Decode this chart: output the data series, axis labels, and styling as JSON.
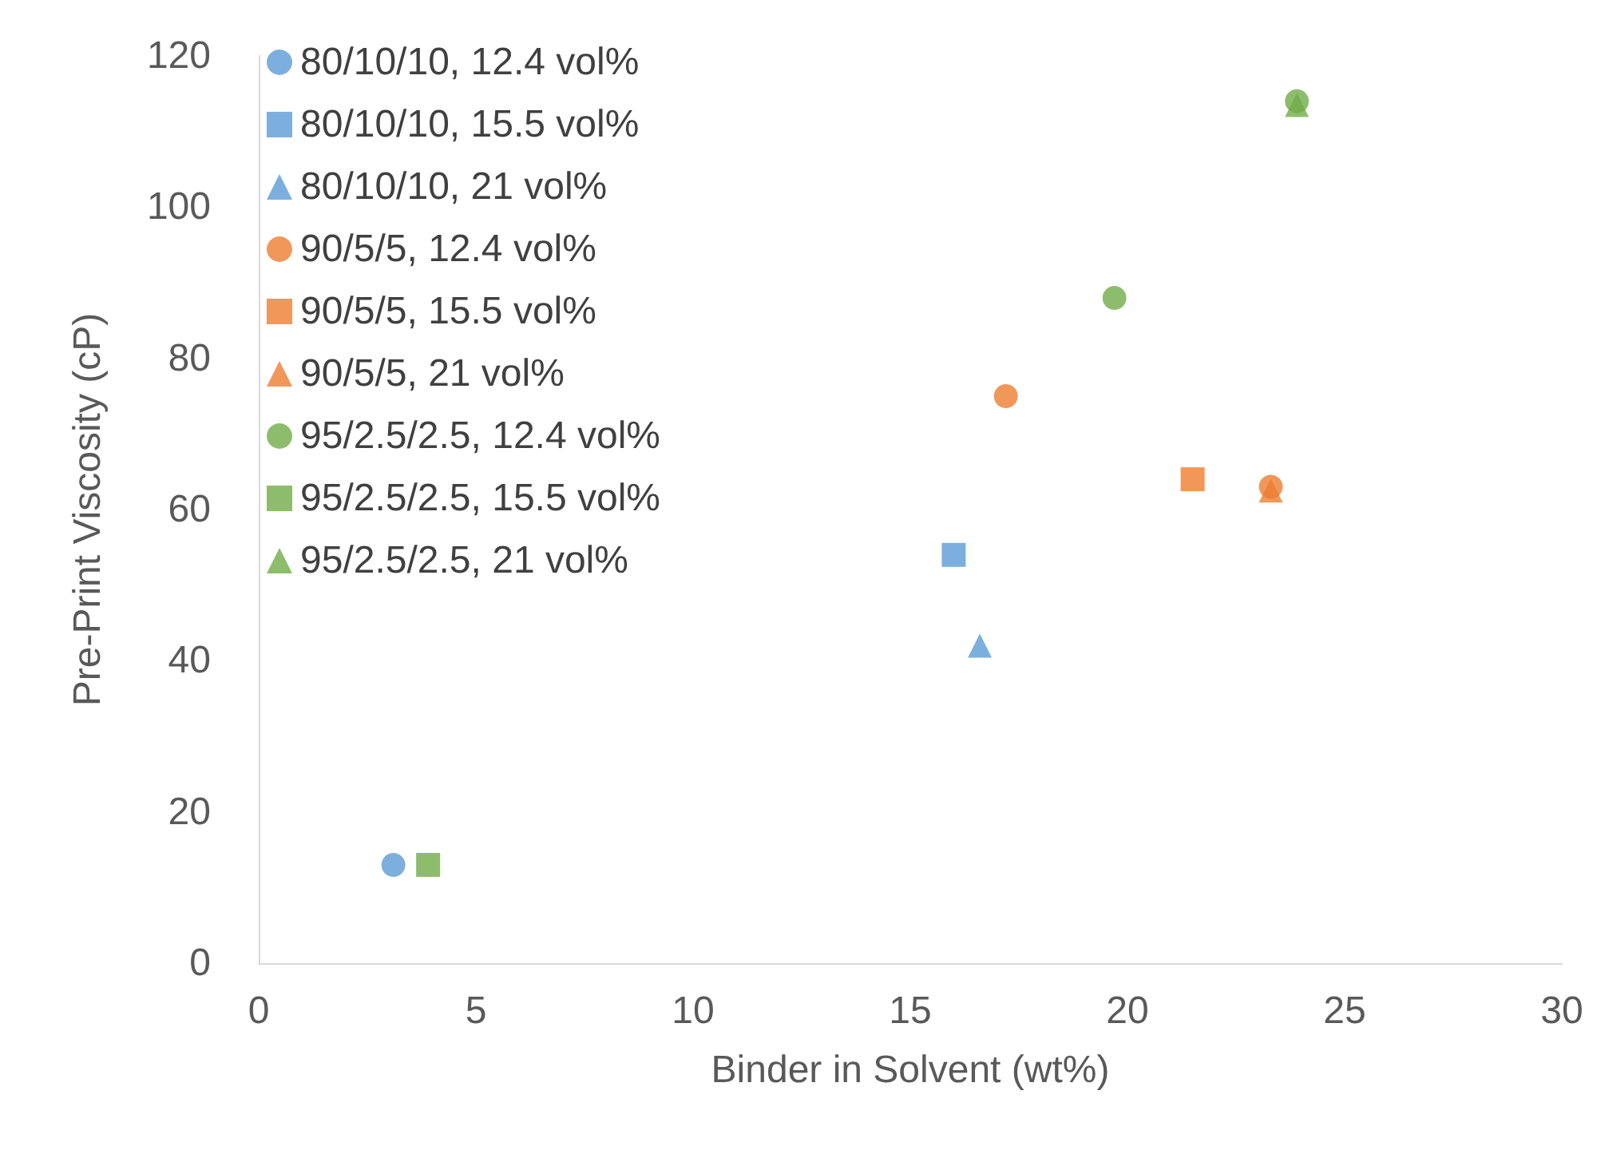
{
  "chart_data": {
    "type": "scatter",
    "xlabel": "Binder in Solvent (wt%)",
    "ylabel": "Pre-Print Viscosity (cP)",
    "xlim": [
      0,
      30
    ],
    "xticks": [
      0,
      5,
      10,
      15,
      20,
      25,
      30
    ],
    "ylim": [
      0,
      120
    ],
    "yticks": [
      0,
      20,
      40,
      60,
      80,
      100,
      120
    ],
    "grid": false,
    "legend": "top left",
    "series": [
      {
        "name": "80/10/10, 12.4 vol%",
        "color": "#5b9bd5",
        "marker": "circle",
        "x": [
          3.1
        ],
        "values": [
          13
        ]
      },
      {
        "name": "80/10/10, 15.5 vol%",
        "color": "#5b9bd5",
        "marker": "square",
        "x": [
          16
        ],
        "values": [
          54
        ]
      },
      {
        "name": "80/10/10, 21 vol%",
        "color": "#5b9bd5",
        "marker": "triangle",
        "x": [
          16.6
        ],
        "values": [
          42
        ]
      },
      {
        "name": "90/5/5, 12.4 vol%",
        "color": "#ed7d31",
        "marker": "circle",
        "x": [
          17.2,
          23.3
        ],
        "values": [
          75,
          63
        ]
      },
      {
        "name": "90/5/5, 15.5 vol%",
        "color": "#ed7d31",
        "marker": "square",
        "x": [
          21.5
        ],
        "values": [
          64
        ]
      },
      {
        "name": "90/5/5, 21 vol%",
        "color": "#ed7d31",
        "marker": "triangle",
        "x": [
          23.3
        ],
        "values": [
          62.5
        ]
      },
      {
        "name": "95/2.5/2.5, 12.4 vol%",
        "color": "#70ad47",
        "marker": "circle",
        "x": [
          19.7,
          23.9
        ],
        "values": [
          88,
          114
        ]
      },
      {
        "name": "95/2.5/2.5, 15.5 vol%",
        "color": "#70ad47",
        "marker": "square",
        "x": [
          3.9
        ],
        "values": [
          13
        ]
      },
      {
        "name": "95/2.5/2.5, 21 vol%",
        "color": "#70ad47",
        "marker": "triangle",
        "x": [
          23.9
        ],
        "values": [
          113.5
        ]
      }
    ]
  }
}
